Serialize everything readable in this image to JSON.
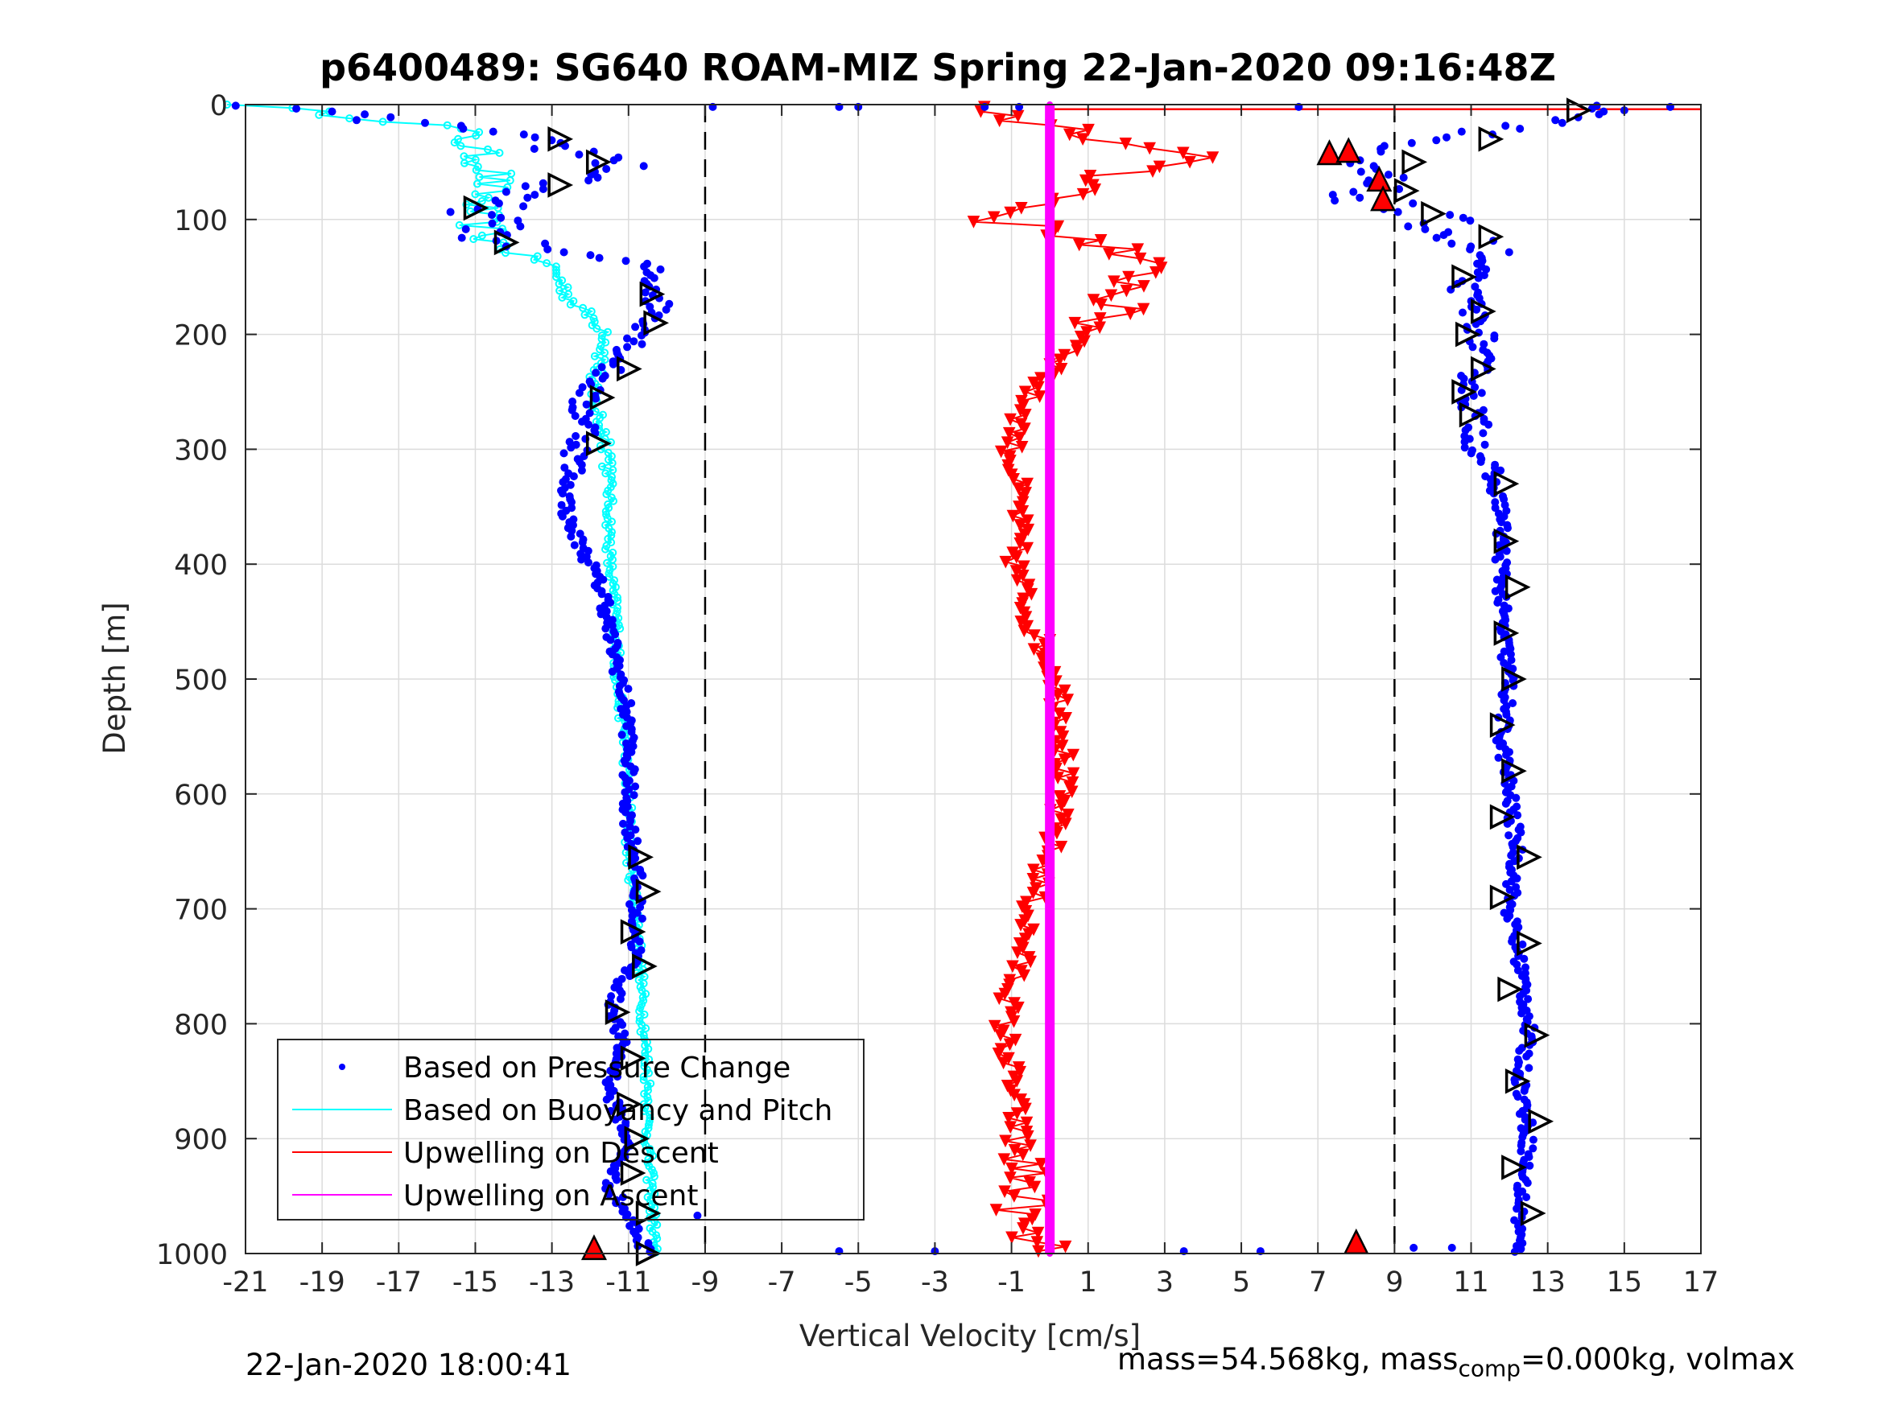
{
  "chart_data": {
    "type": "scatter",
    "title": "p6400489: SG640 ROAM-MIZ Spring 22-Jan-2020 09:16:48Z",
    "xlabel": "Vertical Velocity [cm/s]",
    "ylabel": "Depth [m]",
    "xlim": [
      -21,
      17
    ],
    "ylim": [
      0,
      1000
    ],
    "y_reversed": true,
    "grid": true,
    "x_ticks": [
      -21,
      -19,
      -17,
      -15,
      -13,
      -11,
      -9,
      -7,
      -5,
      -3,
      -1,
      1,
      3,
      5,
      7,
      9,
      11,
      13,
      15,
      17
    ],
    "y_ticks": [
      0,
      100,
      200,
      300,
      400,
      500,
      600,
      700,
      800,
      900,
      1000
    ],
    "reference_lines_x": [
      -9,
      9
    ],
    "legend_position": "lower-left",
    "series": [
      {
        "name": "Based on Pressure Change",
        "color": "#0000ff",
        "marker": "dot",
        "branches": [
          {
            "depth": [
              2,
              20,
              40,
              50,
              60,
              80,
              100,
              120,
              140,
              160,
              180,
              200,
              230,
              260,
              280,
              300,
              330,
              360,
              400,
              430,
              460,
              500,
              540,
              580,
              620,
              660,
              700,
              740,
              780,
              820,
              860,
              900,
              940,
              980,
              1000
            ],
            "velocity": [
              -20.5,
              -15.5,
              -12.5,
              -11.0,
              -11.5,
              -14.5,
              -14.8,
              -14.3,
              -10.5,
              -10.3,
              -10.2,
              -10.6,
              -11.5,
              -12.3,
              -12.0,
              -12.3,
              -12.6,
              -12.6,
              -12.0,
              -11.6,
              -11.5,
              -11.2,
              -11.0,
              -11.0,
              -11.0,
              -10.8,
              -10.8,
              -10.8,
              -11.4,
              -11.2,
              -11.5,
              -11.0,
              -11.5,
              -10.8,
              -10.5
            ]
          },
          {
            "depth": [
              5,
              20,
              40,
              45,
              60,
              80,
              100,
              130,
              160,
              200,
              250,
              300,
              350,
              400,
              450,
              500,
              550,
              600,
              650,
              700,
              750,
              800,
              850,
              900,
              950,
              1000
            ],
            "velocity": [
              15.0,
              12.5,
              8.0,
              7.0,
              8.5,
              8.0,
              10.0,
              11.3,
              10.8,
              11.3,
              11.0,
              11.2,
              11.8,
              11.8,
              11.8,
              12.0,
              11.8,
              12.0,
              12.2,
              12.0,
              12.3,
              12.5,
              12.3,
              12.5,
              12.3,
              12.2
            ]
          }
        ]
      },
      {
        "name": "Based on Buoyancy and Pitch",
        "color": "#00ffff",
        "marker": "line",
        "branches": [
          {
            "depth": [
              0,
              20,
              40,
              60,
              80,
              100,
              120,
              140,
              170,
              200,
              230,
              250,
              270,
              300,
              350,
              400,
              450,
              500,
              550,
              600,
              650,
              700,
              750,
              800,
              850,
              900,
              950,
              1000
            ],
            "velocity": [
              -21.0,
              -15.5,
              -15.0,
              -14.5,
              -14.8,
              -15.0,
              -14.5,
              -13.0,
              -12.5,
              -11.5,
              -11.8,
              -12.0,
              -11.8,
              -11.5,
              -11.5,
              -11.5,
              -11.3,
              -11.3,
              -11.1,
              -11.0,
              -11.0,
              -10.8,
              -10.7,
              -10.6,
              -10.5,
              -10.5,
              -10.4,
              -10.3
            ]
          }
        ]
      },
      {
        "name": "Upwelling on Descent",
        "color": "#ff0000",
        "marker": "triangle-down",
        "branches": [
          {
            "depth": [
              5,
              20,
              40,
              50,
              60,
              80,
              100,
              120,
              150,
              180,
              210,
              250,
              300,
              350,
              400,
              450,
              500,
              550,
              600,
              650,
              700,
              750,
              800,
              850,
              900,
              950,
              980,
              1000
            ],
            "velocity": [
              -2.5,
              0.5,
              2.5,
              4.0,
              2.0,
              0.5,
              -1.5,
              1.5,
              2.5,
              1.5,
              0.8,
              -0.5,
              -1.0,
              -0.8,
              -0.9,
              -0.5,
              0.2,
              0.4,
              0.3,
              0.0,
              -0.5,
              -0.8,
              -1.2,
              -1.0,
              -0.8,
              -0.6,
              -0.9,
              0.0
            ]
          }
        ]
      },
      {
        "name": "Upwelling on Ascent",
        "color": "#ff00ff",
        "marker": "line",
        "branches": [
          {
            "depth": [
              0,
              1000
            ],
            "velocity": [
              0.0,
              0.0
            ]
          }
        ]
      }
    ],
    "markers": {
      "right_triangles_descent_depth": [
        30,
        50,
        70,
        90,
        120,
        165,
        190,
        230,
        255,
        295,
        655,
        685,
        720,
        750,
        790,
        830,
        870,
        900,
        930,
        965,
        1000
      ],
      "right_triangles_descent_velocity": [
        -12.8,
        -11.8,
        -12.8,
        -15.0,
        -14.2,
        -10.4,
        -10.3,
        -11.0,
        -11.7,
        -11.8,
        -10.7,
        -10.5,
        -10.9,
        -10.6,
        -11.3,
        -10.9,
        -11.0,
        -10.8,
        -10.9,
        -10.5,
        -10.5
      ],
      "right_triangles_ascent_depth": [
        5,
        30,
        50,
        75,
        95,
        115,
        150,
        180,
        200,
        230,
        250,
        270,
        330,
        380,
        420,
        460,
        500,
        540,
        580,
        620,
        655,
        690,
        730,
        770,
        810,
        850,
        885,
        925,
        965
      ],
      "right_triangles_ascent_velocity": [
        13.8,
        11.5,
        9.5,
        9.3,
        10.0,
        11.5,
        10.8,
        11.3,
        10.9,
        11.3,
        10.8,
        11.0,
        11.9,
        11.9,
        12.2,
        11.9,
        12.1,
        11.8,
        12.1,
        11.8,
        12.5,
        11.8,
        12.5,
        12.0,
        12.7,
        12.2,
        12.8,
        12.1,
        12.6
      ],
      "red_up_triangles": [
        {
          "velocity": 7.3,
          "depth": 42
        },
        {
          "velocity": 7.8,
          "depth": 40
        },
        {
          "velocity": 8.6,
          "depth": 65
        },
        {
          "velocity": 8.7,
          "depth": 82
        },
        {
          "velocity": 8.0,
          "depth": 990
        },
        {
          "velocity": -11.9,
          "depth": 995
        }
      ]
    }
  },
  "footer": {
    "timestamp": "22-Jan-2020 18:00:41",
    "mass_text_a": "mass=54.568kg, mass",
    "mass_sub": "comp",
    "mass_text_b": "=0.000kg, volmax"
  }
}
